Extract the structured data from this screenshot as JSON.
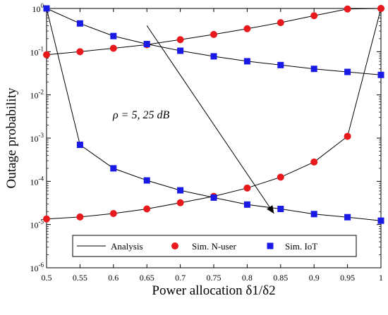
{
  "chart_data": {
    "type": "line",
    "title": "",
    "xlabel": "Power allocation δ1/δ2",
    "ylabel": "Outage probability",
    "xlim": [
      0.5,
      1.0
    ],
    "ylim": [
      1e-06,
      1
    ],
    "yscale": "log",
    "grid": false,
    "legend_position": "bottom",
    "x": [
      0.5,
      0.55,
      0.6,
      0.65,
      0.7,
      0.75,
      0.8,
      0.85,
      0.9,
      0.95,
      1.0
    ],
    "x_tick_labels": [
      "0.5",
      "0.55",
      "0.6",
      "0.65",
      "0.7",
      "0.75",
      "0.8",
      "0.85",
      "0.9",
      "0.95",
      "1"
    ],
    "y_tick_labels": [
      {
        "value": 1e-06,
        "base": "10",
        "exp": "-6"
      },
      {
        "value": 1e-05,
        "base": "10",
        "exp": "-5"
      },
      {
        "value": 0.0001,
        "base": "10",
        "exp": "-4"
      },
      {
        "value": 0.001,
        "base": "10",
        "exp": "-3"
      },
      {
        "value": 0.01,
        "base": "10",
        "exp": "-2"
      },
      {
        "value": 0.1,
        "base": "10",
        "exp": "-1"
      },
      {
        "value": 1,
        "base": "10",
        "exp": "0"
      }
    ],
    "legend": [
      {
        "label": "Analysis",
        "marker": "line"
      },
      {
        "label": "Sim. N-user",
        "marker": "circle"
      },
      {
        "label": "Sim. IoT",
        "marker": "square"
      }
    ],
    "series": [
      {
        "group": "rho=5",
        "kind": "N-user",
        "values": [
          0.085,
          0.1,
          0.12,
          0.145,
          0.19,
          0.25,
          0.34,
          0.47,
          0.68,
          0.97,
          1.0
        ]
      },
      {
        "group": "rho=5",
        "kind": "IoT",
        "values": [
          1.0,
          0.45,
          0.23,
          0.15,
          0.105,
          0.078,
          0.06,
          0.049,
          0.04,
          0.034,
          0.029
        ]
      },
      {
        "group": "rho=25dB",
        "kind": "N-user",
        "values": [
          1.35e-05,
          1.5e-05,
          1.8e-05,
          2.3e-05,
          3.2e-05,
          4.5e-05,
          7e-05,
          0.000125,
          0.00028,
          0.0011,
          1.0
        ]
      },
      {
        "group": "rho=25dB",
        "kind": "IoT",
        "values": [
          1.0,
          0.0007,
          0.0002,
          0.000105,
          6.2e-05,
          4.2e-05,
          2.9e-05,
          2.3e-05,
          1.75e-05,
          1.48e-05,
          1.23e-05
        ]
      }
    ],
    "annotation": {
      "text": "ρ = 5, 25 dB",
      "arrow_from": [
        0.65,
        0.4
      ],
      "arrow_to": [
        0.84,
        1.8e-05
      ]
    },
    "colors": {
      "analysis": "#000000",
      "n_user": "#e8191c",
      "iot": "#1a1ae6",
      "axes": "#000000"
    }
  }
}
